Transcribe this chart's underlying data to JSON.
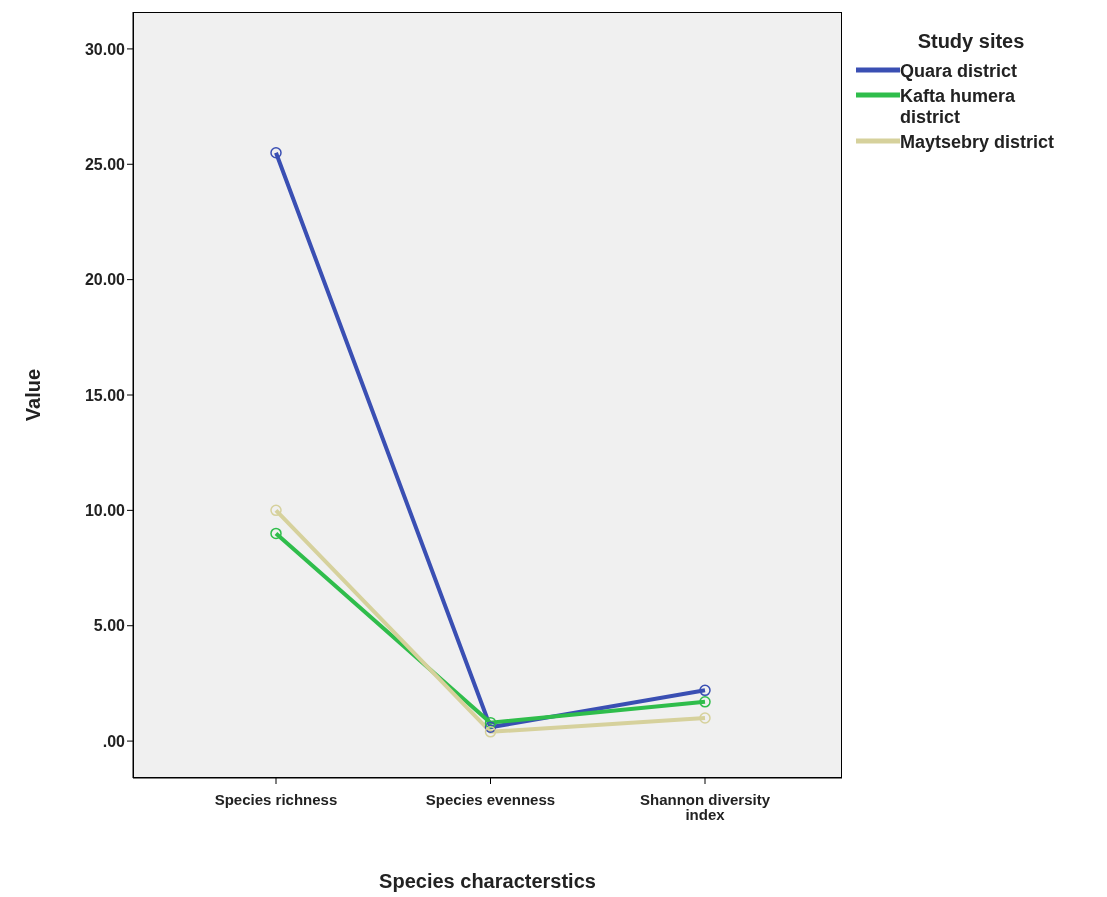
{
  "chart_data": {
    "type": "line",
    "xlabel": "Species characterstics",
    "ylabel": "Value",
    "legend_title": "Study sites",
    "categories": [
      "Species richness",
      "Species evenness",
      "Shannon diversity index"
    ],
    "series": [
      {
        "name": "Quara district",
        "color": "#3a4fb3",
        "values": [
          25.5,
          0.6,
          2.2
        ]
      },
      {
        "name": "Kafta humera district",
        "color": "#2fbd4b",
        "values": [
          9.0,
          0.8,
          1.7
        ]
      },
      {
        "name": "Maytsebry district",
        "color": "#d6d19c",
        "values": [
          10.0,
          0.4,
          1.0
        ]
      }
    ],
    "ylim": [
      -1.6,
      31.6
    ],
    "yticks": [
      {
        "value": 0,
        "label": ".00"
      },
      {
        "value": 5,
        "label": "5.00"
      },
      {
        "value": 10,
        "label": "10.00"
      },
      {
        "value": 15,
        "label": "15.00"
      },
      {
        "value": 20,
        "label": "20.00"
      },
      {
        "value": 25,
        "label": "25.00"
      },
      {
        "value": 30,
        "label": "30.00"
      }
    ],
    "legend": "right",
    "marker": "circle",
    "line_style": "solid"
  }
}
